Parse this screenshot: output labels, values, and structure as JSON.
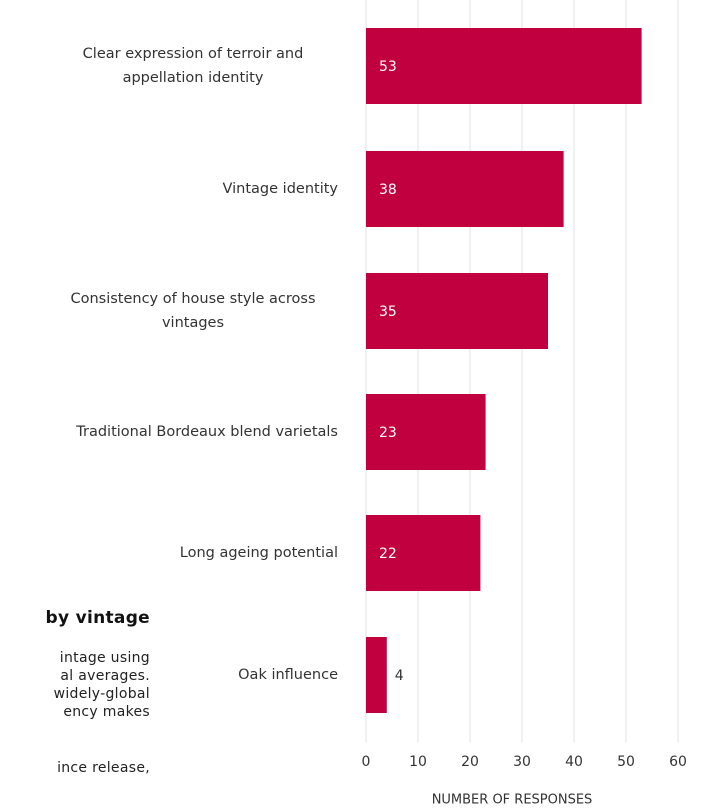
{
  "chart_data": {
    "type": "bar",
    "orientation": "horizontal",
    "categories": [
      "Clear expression of terroir and appellation identity",
      "Vintage identity",
      "Consistency of house style across vintages",
      "Traditional Bordeaux blend varietals",
      "Long ageing potential",
      "Oak influence"
    ],
    "values": [
      53,
      38,
      35,
      23,
      22,
      4
    ],
    "color": "#c1003f",
    "xlim": [
      0,
      60
    ],
    "xticks": [
      0,
      10,
      20,
      30,
      40,
      50,
      60
    ],
    "xlabel": "NUMBER OF RESPONSES",
    "grid": true
  },
  "article_fragments": {
    "heading": "by vintage",
    "lines": [
      "intage using",
      "al averages.",
      "widely-global",
      "ency makes",
      "ince release,"
    ]
  }
}
